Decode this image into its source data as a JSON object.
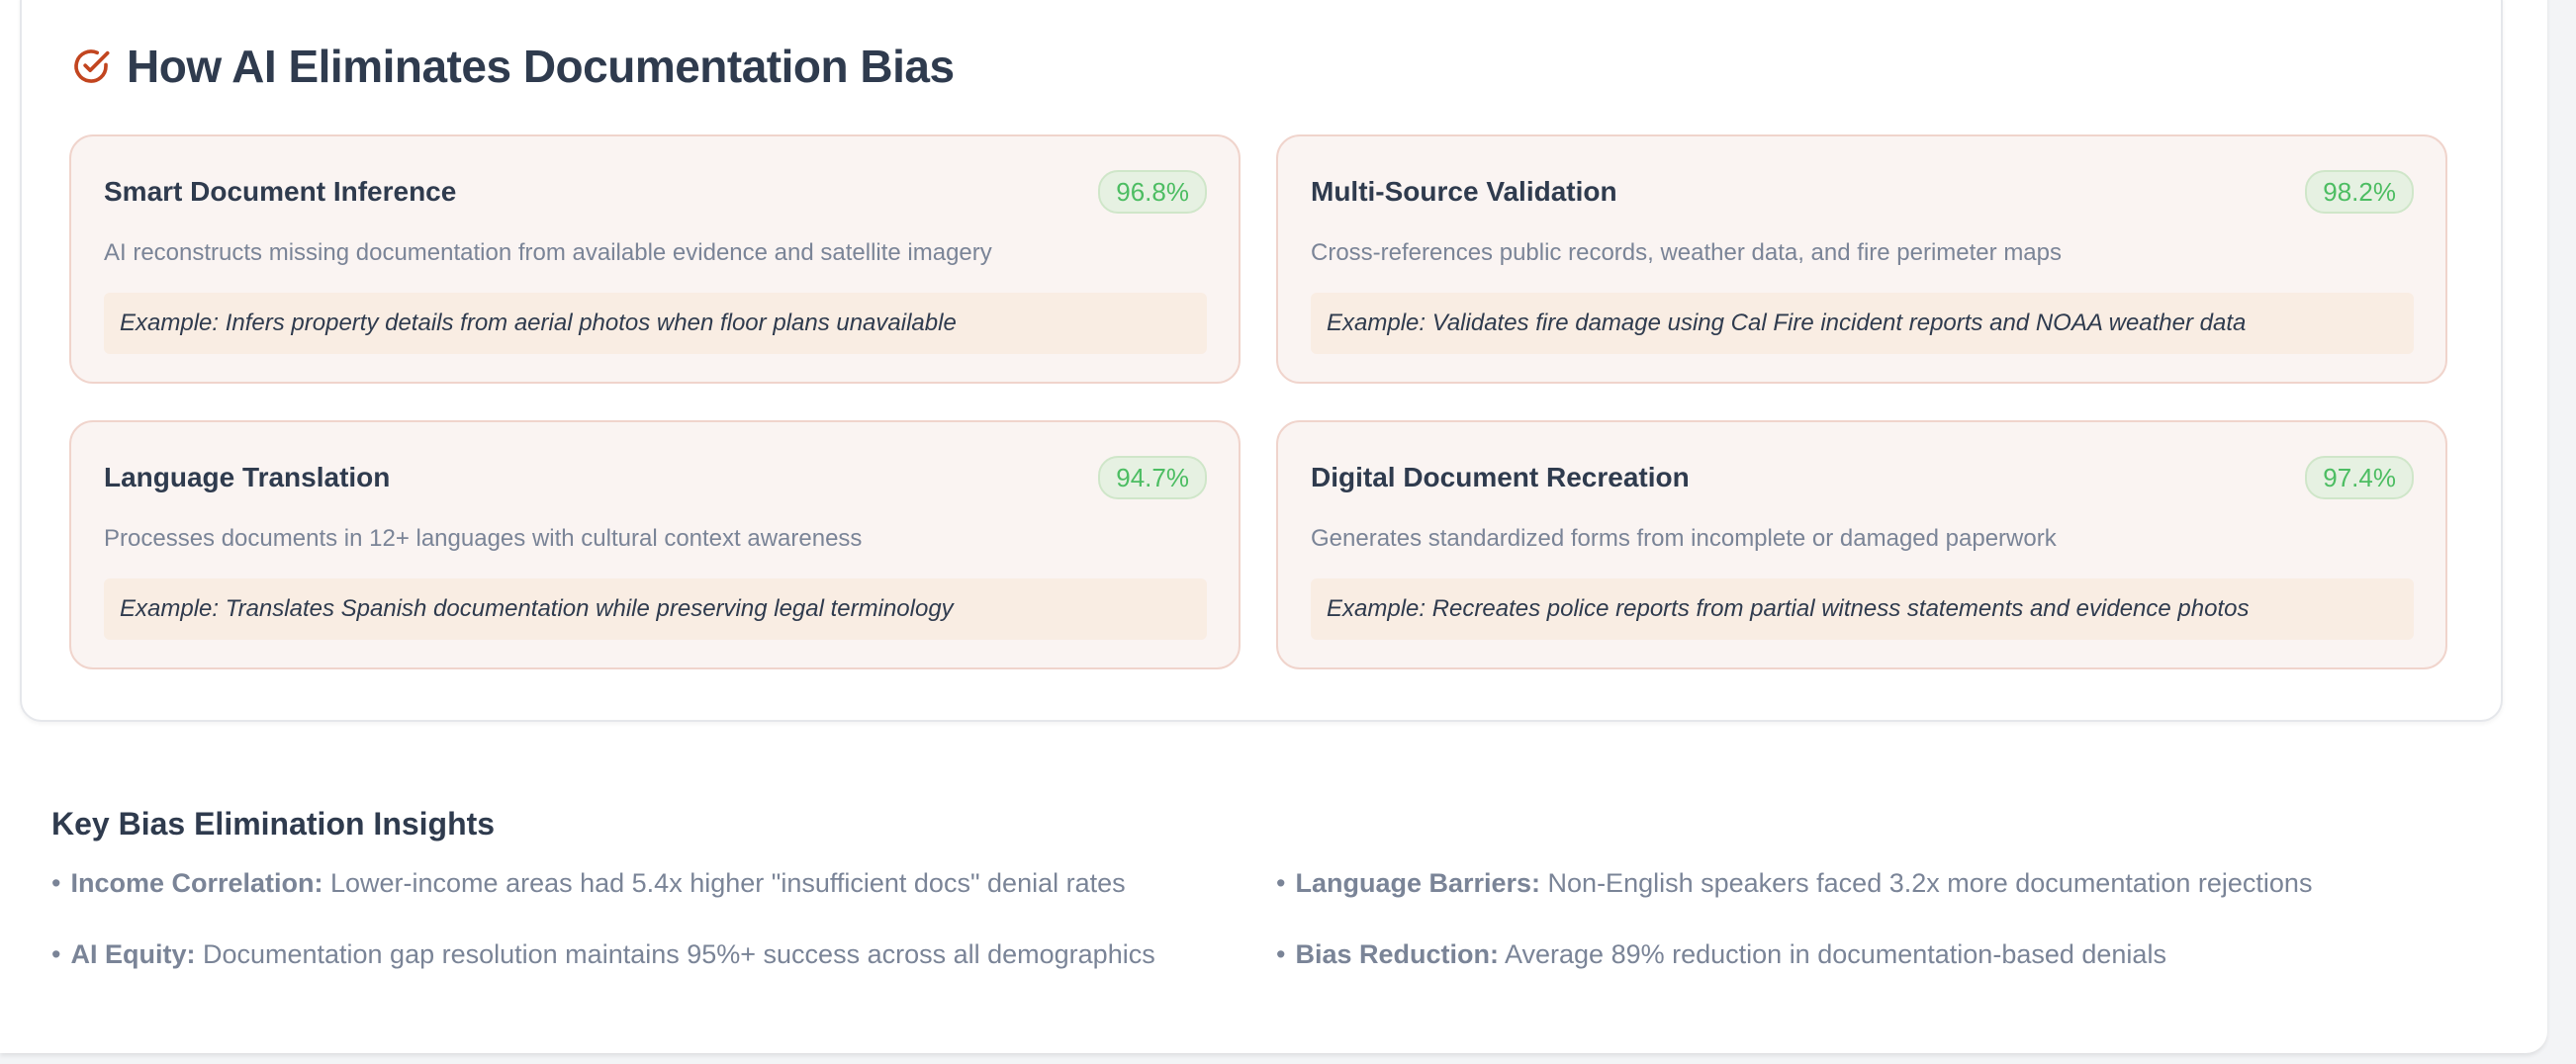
{
  "section": {
    "title": "How AI Eliminates Documentation Bias",
    "icon": "check-circle-icon",
    "accent": "#c2451f"
  },
  "cards": [
    {
      "title": "Smart Document Inference",
      "score": "96.8%",
      "description": "AI reconstructs missing documentation from available evidence and satellite imagery",
      "example": "Example: Infers property details from aerial photos when floor plans unavailable"
    },
    {
      "title": "Multi-Source Validation",
      "score": "98.2%",
      "description": "Cross-references public records, weather data, and fire perimeter maps",
      "example": "Example: Validates fire damage using Cal Fire incident reports and NOAA weather data"
    },
    {
      "title": "Language Translation",
      "score": "94.7%",
      "description": "Processes documents in 12+ languages with cultural context awareness",
      "example": "Example: Translates Spanish documentation while preserving legal terminology"
    },
    {
      "title": "Digital Document Recreation",
      "score": "97.4%",
      "description": "Generates standardized forms from incomplete or damaged paperwork",
      "example": "Example: Recreates police reports from partial witness statements and evidence photos"
    }
  ],
  "insights": {
    "title": "Key Bias Elimination Insights",
    "bullet": "•",
    "items": [
      {
        "label": "Income Correlation:",
        "text": " Lower-income areas had 5.4x higher \"insufficient docs\" denial rates"
      },
      {
        "label": "Language Barriers:",
        "text": " Non-English speakers faced 3.2x more documentation rejections"
      },
      {
        "label": "AI Equity:",
        "text": " Documentation gap resolution maintains 95%+ success across all demographics"
      },
      {
        "label": "Bias Reduction:",
        "text": " Average 89% reduction in documentation-based denials"
      }
    ]
  }
}
